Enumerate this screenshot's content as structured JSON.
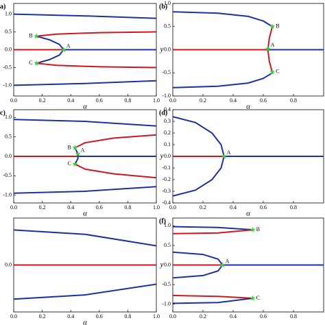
{
  "chart_data": [
    {
      "type": "line",
      "panel_label": "a)",
      "x_label": "α",
      "xlim": [
        0,
        1
      ],
      "ylim": [
        -1.3,
        1.3
      ],
      "xticks": [
        {
          "value": 0,
          "label": "0.0"
        },
        0.2,
        0.4,
        0.6,
        0.8,
        {
          "value": 1,
          "label": "1.0"
        }
      ],
      "yticks": [
        {
          "value": 1,
          "label": "1.0"
        },
        0.5,
        {
          "value": 0,
          "label": "0.0"
        },
        -0.5,
        {
          "value": -1,
          "label": "-1.0"
        }
      ],
      "series": [
        {
          "color": "#1a2fa8",
          "x": [
            0,
            0.5,
            1
          ],
          "values": [
            1.0,
            0.95,
            0.88
          ]
        },
        {
          "color": "#1a2fa8",
          "x": [
            0,
            0.5,
            1
          ],
          "values": [
            -1.0,
            -0.95,
            -0.87
          ]
        },
        {
          "color": "#d0161b",
          "x": [
            0,
            0.35
          ],
          "values": [
            0,
            0
          ]
        },
        {
          "color": "#1a2fa8",
          "x": [
            0.35,
            1
          ],
          "values": [
            0,
            0
          ]
        },
        {
          "color": "#1a2fa8",
          "x": [
            0.16,
            0.25,
            0.32,
            0.35,
            0.32,
            0.25,
            0.16
          ],
          "values": [
            0.38,
            0.28,
            0.15,
            0,
            -0.15,
            -0.28,
            -0.38
          ]
        },
        {
          "color": "#d0161b",
          "x": [
            0.16,
            0.3,
            0.6,
            1
          ],
          "values": [
            0.38,
            0.44,
            0.48,
            0.5
          ]
        },
        {
          "color": "#d0161b",
          "x": [
            0.16,
            0.3,
            0.6,
            1
          ],
          "values": [
            -0.38,
            -0.44,
            -0.48,
            -0.5
          ]
        }
      ],
      "marker_color": "#3ccf3c",
      "points": [
        {
          "x": 0.35,
          "y": 0,
          "label": "A"
        },
        {
          "x": 0.16,
          "y": 0.38,
          "label": "B"
        },
        {
          "x": 0.16,
          "y": -0.38,
          "label": "C"
        }
      ]
    },
    {
      "type": "line",
      "panel_label": "(b)",
      "x_label": "α",
      "y_label": "y",
      "xlim": [
        0,
        1
      ],
      "ylim": [
        -1,
        1
      ],
      "xticks": [
        {
          "value": 0,
          "label": "0.0"
        },
        0.2,
        0.4,
        0.6,
        0.8
      ],
      "yticks": [
        {
          "value": 1,
          "label": "1.0"
        },
        0.5,
        {
          "value": 0,
          "label": "0.0"
        },
        -0.5,
        {
          "value": -1,
          "label": "-1.0"
        }
      ],
      "series": [
        {
          "color": "#1a2fa8",
          "x": [
            0,
            0.3,
            0.5,
            0.6,
            0.66
          ],
          "values": [
            0.82,
            0.79,
            0.72,
            0.62,
            0.5
          ]
        },
        {
          "color": "#1a2fa8",
          "x": [
            0,
            0.3,
            0.5,
            0.6,
            0.66
          ],
          "values": [
            -0.82,
            -0.79,
            -0.72,
            -0.62,
            -0.5
          ]
        },
        {
          "color": "#d0161b",
          "x": [
            0,
            0.63
          ],
          "values": [
            0,
            0
          ]
        },
        {
          "color": "#1a2fa8",
          "x": [
            0.63,
            1
          ],
          "values": [
            0,
            0
          ]
        },
        {
          "color": "#d0161b",
          "x": [
            0.66,
            0.64,
            0.63,
            0.64,
            0.66
          ],
          "values": [
            0.5,
            0.25,
            0,
            -0.25,
            -0.5
          ]
        }
      ],
      "marker_color": "#3ccf3c",
      "points": [
        {
          "x": 0.63,
          "y": 0.02,
          "label": "A"
        },
        {
          "x": 0.66,
          "y": 0.5,
          "label": "B"
        },
        {
          "x": 0.66,
          "y": -0.48,
          "label": "C"
        }
      ]
    },
    {
      "type": "line",
      "panel_label": "c)",
      "x_label": "α",
      "xlim": [
        0,
        1
      ],
      "ylim": [
        -1.2,
        1.2
      ],
      "xticks": [
        {
          "value": 0,
          "label": "0.0"
        },
        0.2,
        0.4,
        0.6,
        0.8,
        {
          "value": 1,
          "label": "1.0"
        }
      ],
      "yticks": [
        {
          "value": 1,
          "label": "1.0"
        },
        0.5,
        {
          "value": 0,
          "label": "0.0"
        },
        -0.5,
        {
          "value": -1,
          "label": "-1.0"
        }
      ],
      "series": [
        {
          "color": "#1a2fa8",
          "x": [
            0,
            0.5,
            1
          ],
          "values": [
            0.95,
            0.9,
            0.78
          ]
        },
        {
          "color": "#1a2fa8",
          "x": [
            0,
            0.5,
            1
          ],
          "values": [
            -0.95,
            -0.9,
            -0.78
          ]
        },
        {
          "color": "#d0161b",
          "x": [
            0,
            0.45
          ],
          "values": [
            0,
            0
          ]
        },
        {
          "color": "#1a2fa8",
          "x": [
            0.45,
            1
          ],
          "values": [
            0,
            0
          ]
        },
        {
          "color": "#1a2fa8",
          "x": [
            0.43,
            0.45,
            0.45,
            0.43
          ],
          "values": [
            0.22,
            0.06,
            -0.06,
            -0.2
          ]
        },
        {
          "color": "#d0161b",
          "x": [
            0.43,
            0.5,
            0.7,
            1
          ],
          "values": [
            0.22,
            0.35,
            0.47,
            0.55
          ]
        },
        {
          "color": "#d0161b",
          "x": [
            0.43,
            0.5,
            0.7,
            1
          ],
          "values": [
            -0.2,
            -0.33,
            -0.45,
            -0.55
          ]
        }
      ],
      "marker_color": "#3ccf3c",
      "points": [
        {
          "x": 0.45,
          "y": 0.06,
          "label": "A"
        },
        {
          "x": 0.43,
          "y": 0.22,
          "label": "B"
        },
        {
          "x": 0.43,
          "y": -0.2,
          "label": "C"
        }
      ]
    },
    {
      "type": "line",
      "panel_label": "(d)",
      "x_label": "α",
      "y_label": "y",
      "xlim": [
        0,
        1
      ],
      "ylim": [
        -0.4,
        0.4
      ],
      "xticks": [
        {
          "value": 0,
          "label": "0.0"
        },
        0.2,
        0.4,
        0.6,
        0.8
      ],
      "yticks": [
        0.4,
        0.3,
        0.2,
        0.1,
        {
          "value": 0,
          "label": "0.0"
        },
        -0.1,
        -0.2,
        -0.3,
        -0.4
      ],
      "series": [
        {
          "color": "#1a2fa8",
          "x": [
            0,
            0.15,
            0.26,
            0.32,
            0.34,
            0.32,
            0.26,
            0.15,
            0
          ],
          "values": [
            0.34,
            0.29,
            0.2,
            0.1,
            0,
            -0.1,
            -0.2,
            -0.29,
            -0.34
          ]
        },
        {
          "color": "#d0161b",
          "x": [
            0,
            0.34
          ],
          "values": [
            0,
            0
          ]
        },
        {
          "color": "#1a2fa8",
          "x": [
            0.34,
            1
          ],
          "values": [
            0,
            0
          ]
        }
      ],
      "marker_color": "#3ccf3c",
      "points": [
        {
          "x": 0.34,
          "y": 0,
          "label": "A"
        }
      ]
    },
    {
      "type": "line",
      "x_label": "α",
      "xlim": [
        0,
        1
      ],
      "ylim": [
        -1.1,
        1.1
      ],
      "xticks": [
        {
          "value": 0,
          "label": "0.0"
        },
        0.2,
        0.4,
        0.6,
        0.8,
        {
          "value": 1,
          "label": "1.0"
        }
      ],
      "yticks": [
        {
          "value": 0,
          "label": "0.0"
        }
      ],
      "series": [
        {
          "color": "#1a2fa8",
          "x": [
            0,
            0.5,
            1
          ],
          "values": [
            0.82,
            0.72,
            0.45
          ]
        },
        {
          "color": "#1a2fa8",
          "x": [
            0,
            0.5,
            1
          ],
          "values": [
            -0.8,
            -0.7,
            -0.45
          ]
        },
        {
          "color": "#d0161b",
          "x": [
            0,
            1
          ],
          "values": [
            0,
            0
          ]
        }
      ],
      "points": []
    },
    {
      "type": "line",
      "panel_label": "(f)",
      "y_label": "y",
      "xlim": [
        0,
        1
      ],
      "ylim": [
        -1.2,
        1.2
      ],
      "xticks": [
        {
          "value": 0,
          "label": "0.0"
        },
        0.2,
        0.4,
        0.6,
        0.8
      ],
      "yticks": [
        {
          "value": 1,
          "label": "1.0"
        },
        0.5,
        {
          "value": 0,
          "label": "0.0"
        },
        -0.5,
        {
          "value": -1,
          "label": "-1.0"
        }
      ],
      "series": [
        {
          "color": "#1a2fa8",
          "x": [
            0,
            0.3,
            0.53
          ],
          "values": [
            0.98,
            0.96,
            0.9
          ]
        },
        {
          "color": "#d0161b",
          "x": [
            0,
            0.3,
            0.53
          ],
          "values": [
            0.8,
            0.82,
            0.9
          ]
        },
        {
          "color": "#1a2fa8",
          "x": [
            0,
            0.2,
            0.3,
            0.33,
            0.3,
            0.2,
            0
          ],
          "values": [
            0.33,
            0.27,
            0.15,
            0,
            -0.15,
            -0.27,
            -0.33
          ]
        },
        {
          "color": "#d0161b",
          "x": [
            0,
            0.33
          ],
          "values": [
            0,
            0
          ]
        },
        {
          "color": "#1a2fa8",
          "x": [
            0.33,
            1
          ],
          "values": [
            0,
            0
          ]
        },
        {
          "color": "#d0161b",
          "x": [
            0,
            0.3,
            0.53
          ],
          "values": [
            -0.78,
            -0.8,
            -0.85
          ]
        },
        {
          "color": "#1a2fa8",
          "x": [
            0,
            0.3,
            0.53
          ],
          "values": [
            -0.98,
            -0.96,
            -0.85
          ]
        }
      ],
      "marker_color": "#3ccf3c",
      "points": [
        {
          "x": 0.53,
          "y": 0.9,
          "label": "B"
        },
        {
          "x": 0.33,
          "y": 0,
          "label": "A"
        },
        {
          "x": 0.53,
          "y": -0.85,
          "label": "C"
        }
      ]
    }
  ]
}
